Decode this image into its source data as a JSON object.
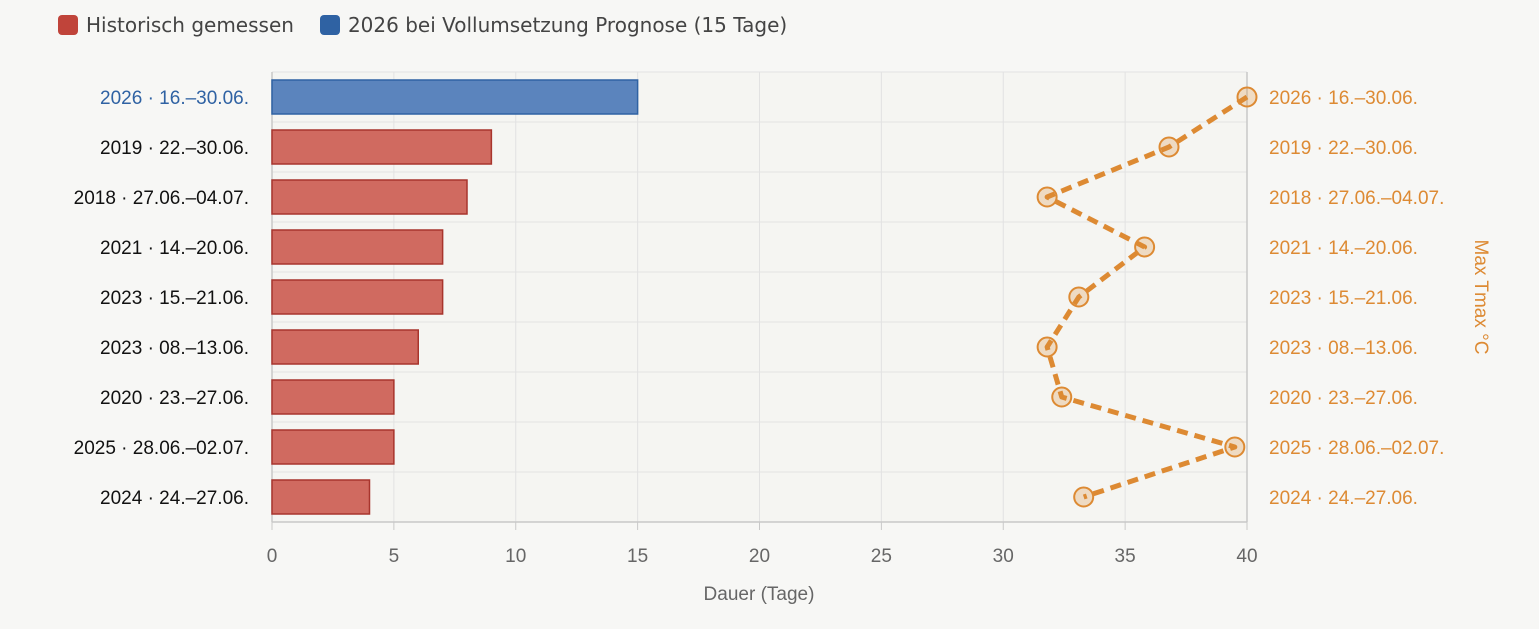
{
  "legend": {
    "historical_label": "Historisch gemessen",
    "forecast_label": "2026 bei Vollumsetzung Prognose (15 Tage)"
  },
  "colors": {
    "historical_fill": "#d06a60",
    "historical_stroke": "#a8352d",
    "forecast_fill": "#5b84bd",
    "forecast_stroke": "#2f62a3",
    "line": "#dd8a33",
    "forecast_label_text": "#2f62a3",
    "right_label_text": "#dd8a33"
  },
  "chart_data": {
    "type": "bar",
    "orientation": "horizontal",
    "categories": [
      "2026 · 16.–30.06.",
      "2019 · 22.–30.06.",
      "2018 · 27.06.–04.07.",
      "2021 · 14.–20.06.",
      "2023 · 15.–21.06.",
      "2023 · 08.–13.06.",
      "2020 · 23.–27.06.",
      "2025 · 28.06.–02.07.",
      "2024 · 24.–27.06."
    ],
    "series": [
      {
        "name": "Historisch gemessen",
        "type": "bar",
        "values": [
          null,
          9,
          8,
          7,
          7,
          6,
          5,
          5,
          4
        ]
      },
      {
        "name": "2026 bei Vollumsetzung Prognose (15 Tage)",
        "type": "bar",
        "values": [
          15,
          null,
          null,
          null,
          null,
          null,
          null,
          null,
          null
        ]
      },
      {
        "type": "line",
        "style": "dashed",
        "values": [
          40.0,
          36.8,
          31.8,
          35.8,
          33.1,
          31.8,
          32.4,
          39.5,
          33.3
        ]
      }
    ],
    "xlabel": "Dauer (Tage)",
    "x_ticks": [
      "0",
      "5",
      "10",
      "15",
      "20",
      "25",
      "30",
      "35",
      "40"
    ],
    "xlim": [
      0,
      40
    ],
    "right_axis_label": "Max Tmax °C",
    "grid": true,
    "legend_position": "top-left"
  }
}
